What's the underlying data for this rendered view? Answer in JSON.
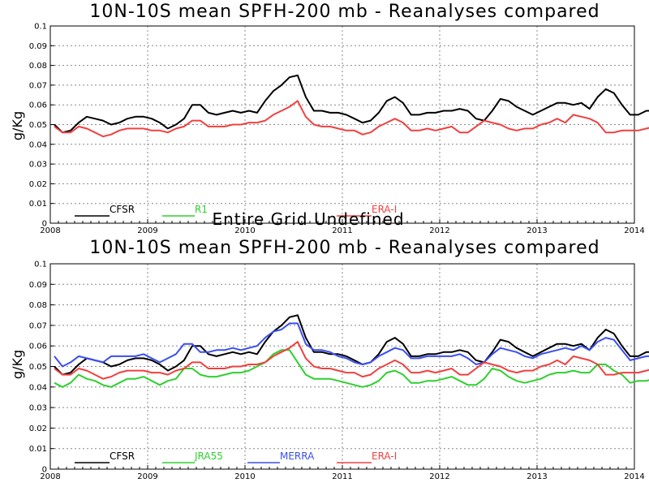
{
  "overlay_message": "Entire Grid Undefined",
  "colors": {
    "CFSR": "#000000",
    "R1": "#2fd02f",
    "JRA55": "#2fd02f",
    "MERRA": "#3a4ff0",
    "ERA-I": "#f04040",
    "grid": "#888888"
  },
  "chart_data": [
    {
      "type": "line",
      "title": "10N-10S mean SPFH-200 mb - Reanalyses compared",
      "xlabel": "",
      "ylabel": "g/Kg",
      "xlim": [
        2008.0,
        2014.0
      ],
      "ylim": [
        0,
        0.1
      ],
      "x_ticks": [
        "2008",
        "2009",
        "2010",
        "2011",
        "2012",
        "2013",
        "2014"
      ],
      "y_ticks": [
        "0",
        "0.01",
        "0.02",
        "0.03",
        "0.04",
        "0.05",
        "0.06",
        "0.07",
        "0.08",
        "0.09",
        "0.1"
      ],
      "grid": true,
      "legend_position": "bottom",
      "legend": [
        "CFSR",
        "R1",
        "ERA-I"
      ],
      "series": [
        {
          "name": "CFSR",
          "start": 2008.0417,
          "step": 0.0833,
          "values": [
            0.05,
            0.046,
            0.047,
            0.051,
            0.054,
            0.053,
            0.052,
            0.05,
            0.051,
            0.053,
            0.054,
            0.054,
            0.053,
            0.051,
            0.048,
            0.05,
            0.053,
            0.06,
            0.06,
            0.056,
            0.055,
            0.056,
            0.057,
            0.056,
            0.057,
            0.056,
            0.062,
            0.067,
            0.07,
            0.074,
            0.075,
            0.064,
            0.057,
            0.057,
            0.056,
            0.056,
            0.055,
            0.053,
            0.051,
            0.052,
            0.056,
            0.062,
            0.064,
            0.061,
            0.055,
            0.055,
            0.056,
            0.056,
            0.057,
            0.057,
            0.058,
            0.057,
            0.053,
            0.052,
            0.057,
            0.063,
            0.062,
            0.059,
            0.057,
            0.055,
            0.057,
            0.059,
            0.061,
            0.061,
            0.06,
            0.061,
            0.058,
            0.064,
            0.068,
            0.066,
            0.06,
            0.055,
            0.055,
            0.057,
            0.057,
            0.057,
            0.058,
            0.058,
            0.055,
            0.056
          ]
        },
        {
          "name": "ERA-I",
          "start": 2008.0417,
          "step": 0.0833,
          "values": [
            0.049,
            0.046,
            0.046,
            0.049,
            0.048,
            0.046,
            0.044,
            0.045,
            0.047,
            0.048,
            0.048,
            0.048,
            0.047,
            0.047,
            0.046,
            0.048,
            0.049,
            0.052,
            0.052,
            0.049,
            0.049,
            0.049,
            0.05,
            0.05,
            0.051,
            0.051,
            0.052,
            0.055,
            0.057,
            0.059,
            0.062,
            0.054,
            0.05,
            0.049,
            0.049,
            0.048,
            0.047,
            0.047,
            0.045,
            0.046,
            0.049,
            0.051,
            0.053,
            0.051,
            0.047,
            0.047,
            0.048,
            0.047,
            0.048,
            0.049,
            0.046,
            0.046,
            0.049,
            0.052,
            0.051,
            0.05,
            0.048,
            0.047,
            0.048,
            0.048,
            0.05,
            0.051,
            0.053,
            0.051,
            0.055,
            0.054,
            0.053,
            0.051,
            0.046,
            0.046,
            0.047,
            0.047,
            0.047,
            0.048,
            0.049
          ]
        }
      ]
    },
    {
      "type": "line",
      "title": "10N-10S mean SPFH-200 mb - Reanalyses compared",
      "xlabel": "",
      "ylabel": "g/Kg",
      "xlim": [
        2008.0,
        2014.0
      ],
      "ylim": [
        0,
        0.1
      ],
      "x_ticks": [
        "2008",
        "2009",
        "2010",
        "2011",
        "2012",
        "2013",
        "2014"
      ],
      "y_ticks": [
        "0",
        "0.01",
        "0.02",
        "0.03",
        "0.04",
        "0.05",
        "0.06",
        "0.07",
        "0.08",
        "0.09",
        "0.1"
      ],
      "grid": true,
      "legend_position": "bottom",
      "legend": [
        "CFSR",
        "JRA55",
        "MERRA",
        "ERA-I"
      ],
      "series": [
        {
          "name": "CFSR",
          "start": 2008.0417,
          "step": 0.0833,
          "values": [
            0.05,
            0.046,
            0.047,
            0.051,
            0.054,
            0.053,
            0.052,
            0.05,
            0.051,
            0.053,
            0.054,
            0.054,
            0.053,
            0.051,
            0.048,
            0.05,
            0.053,
            0.06,
            0.06,
            0.056,
            0.055,
            0.056,
            0.057,
            0.056,
            0.057,
            0.056,
            0.062,
            0.067,
            0.07,
            0.074,
            0.075,
            0.064,
            0.057,
            0.057,
            0.056,
            0.056,
            0.055,
            0.053,
            0.051,
            0.052,
            0.056,
            0.062,
            0.064,
            0.061,
            0.055,
            0.055,
            0.056,
            0.056,
            0.057,
            0.057,
            0.058,
            0.057,
            0.053,
            0.052,
            0.057,
            0.063,
            0.062,
            0.059,
            0.057,
            0.055,
            0.057,
            0.059,
            0.061,
            0.061,
            0.06,
            0.061,
            0.058,
            0.064,
            0.068,
            0.066,
            0.06,
            0.055,
            0.055,
            0.057,
            0.057,
            0.057,
            0.058,
            0.058,
            0.055,
            0.056
          ]
        },
        {
          "name": "JRA55",
          "start": 2008.0417,
          "step": 0.0833,
          "values": [
            0.042,
            0.04,
            0.042,
            0.046,
            0.044,
            0.043,
            0.041,
            0.04,
            0.042,
            0.044,
            0.044,
            0.045,
            0.043,
            0.041,
            0.043,
            0.044,
            0.049,
            0.049,
            0.046,
            0.045,
            0.045,
            0.046,
            0.047,
            0.047,
            0.048,
            0.05,
            0.052,
            0.056,
            0.058,
            0.058,
            0.052,
            0.046,
            0.044,
            0.044,
            0.044,
            0.043,
            0.042,
            0.041,
            0.04,
            0.041,
            0.043,
            0.047,
            0.048,
            0.046,
            0.042,
            0.042,
            0.043,
            0.043,
            0.044,
            0.045,
            0.043,
            0.041,
            0.041,
            0.044,
            0.049,
            0.048,
            0.045,
            0.043,
            0.042,
            0.043,
            0.044,
            0.046,
            0.047,
            0.047,
            0.048,
            0.047,
            0.047,
            0.051,
            0.051,
            0.048,
            0.046,
            0.042,
            0.043,
            0.043,
            0.044,
            0.044,
            0.046,
            0.045,
            0.044,
            0.045
          ]
        },
        {
          "name": "MERRA",
          "start": 2008.0417,
          "step": 0.0833,
          "values": [
            0.055,
            0.05,
            0.052,
            0.055,
            0.054,
            0.053,
            0.052,
            0.055,
            0.055,
            0.055,
            0.055,
            0.056,
            0.054,
            0.052,
            0.054,
            0.056,
            0.061,
            0.061,
            0.057,
            0.057,
            0.058,
            0.058,
            0.059,
            0.058,
            0.059,
            0.06,
            0.064,
            0.067,
            0.068,
            0.071,
            0.071,
            0.061,
            0.058,
            0.058,
            0.057,
            0.055,
            0.054,
            0.052,
            0.051,
            0.052,
            0.055,
            0.057,
            0.059,
            0.058,
            0.054,
            0.054,
            0.055,
            0.055,
            0.055,
            0.055,
            0.056,
            0.054,
            0.051,
            0.052,
            0.056,
            0.059,
            0.058,
            0.057,
            0.055,
            0.054,
            0.056,
            0.057,
            0.058,
            0.059,
            0.058,
            0.06,
            0.058,
            0.062,
            0.064,
            0.063,
            0.058,
            0.053,
            0.054,
            0.055,
            0.055,
            0.056,
            0.056,
            0.055,
            0.054,
            0.055
          ]
        },
        {
          "name": "ERA-I",
          "start": 2008.0417,
          "step": 0.0833,
          "values": [
            0.049,
            0.046,
            0.046,
            0.049,
            0.048,
            0.046,
            0.044,
            0.045,
            0.047,
            0.048,
            0.048,
            0.048,
            0.047,
            0.047,
            0.046,
            0.048,
            0.049,
            0.052,
            0.052,
            0.049,
            0.049,
            0.049,
            0.05,
            0.05,
            0.051,
            0.051,
            0.052,
            0.055,
            0.057,
            0.059,
            0.062,
            0.054,
            0.05,
            0.049,
            0.049,
            0.048,
            0.047,
            0.047,
            0.045,
            0.046,
            0.049,
            0.051,
            0.053,
            0.051,
            0.047,
            0.047,
            0.048,
            0.047,
            0.048,
            0.049,
            0.046,
            0.046,
            0.049,
            0.052,
            0.051,
            0.05,
            0.048,
            0.047,
            0.048,
            0.048,
            0.05,
            0.051,
            0.053,
            0.051,
            0.055,
            0.054,
            0.053,
            0.051,
            0.046,
            0.046,
            0.047,
            0.047,
            0.047,
            0.048,
            0.049
          ]
        }
      ]
    }
  ]
}
